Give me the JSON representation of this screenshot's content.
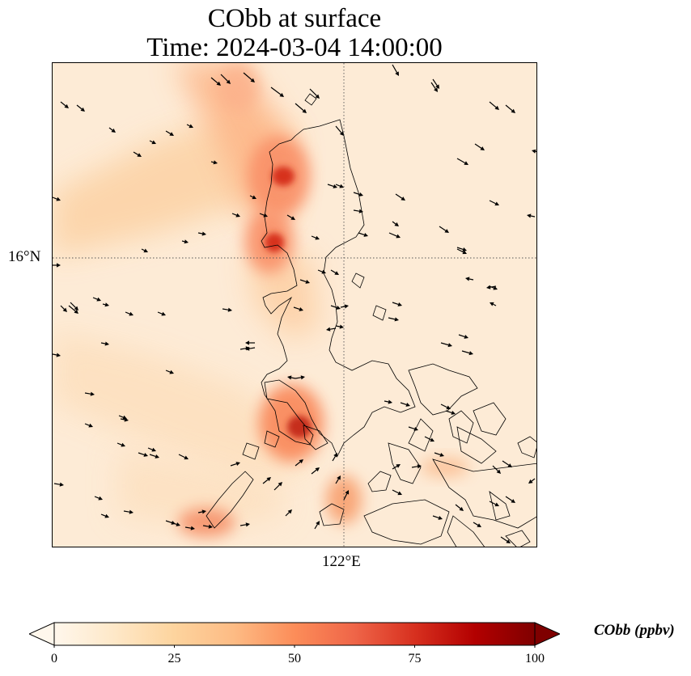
{
  "title": {
    "line1": "CObb at surface",
    "line2": "Time: 2024-03-04 14:00:00"
  },
  "axes": {
    "lat_tick": "16°N",
    "lon_tick": "122°E"
  },
  "colorbar": {
    "label": "CObb (ppbv)",
    "ticks": [
      "0",
      "25",
      "50",
      "75",
      "100"
    ],
    "tick_values": [
      0,
      25,
      50,
      75,
      100
    ],
    "range": [
      0,
      100
    ],
    "extend": "both",
    "colormap": "OrRd",
    "colors": [
      "#fff7ec",
      "#fee8c8",
      "#fdd49e",
      "#fdbb84",
      "#fc8d59",
      "#ef6548",
      "#d7301f",
      "#b30000",
      "#7f0000"
    ]
  },
  "chart_data": {
    "type": "map",
    "variable": "CObb",
    "units": "ppbv",
    "overlays": [
      "coastlines",
      "wind-vectors",
      "lat-lon-gridlines"
    ],
    "gridlines": [
      "16°N",
      "122°E"
    ]
  }
}
